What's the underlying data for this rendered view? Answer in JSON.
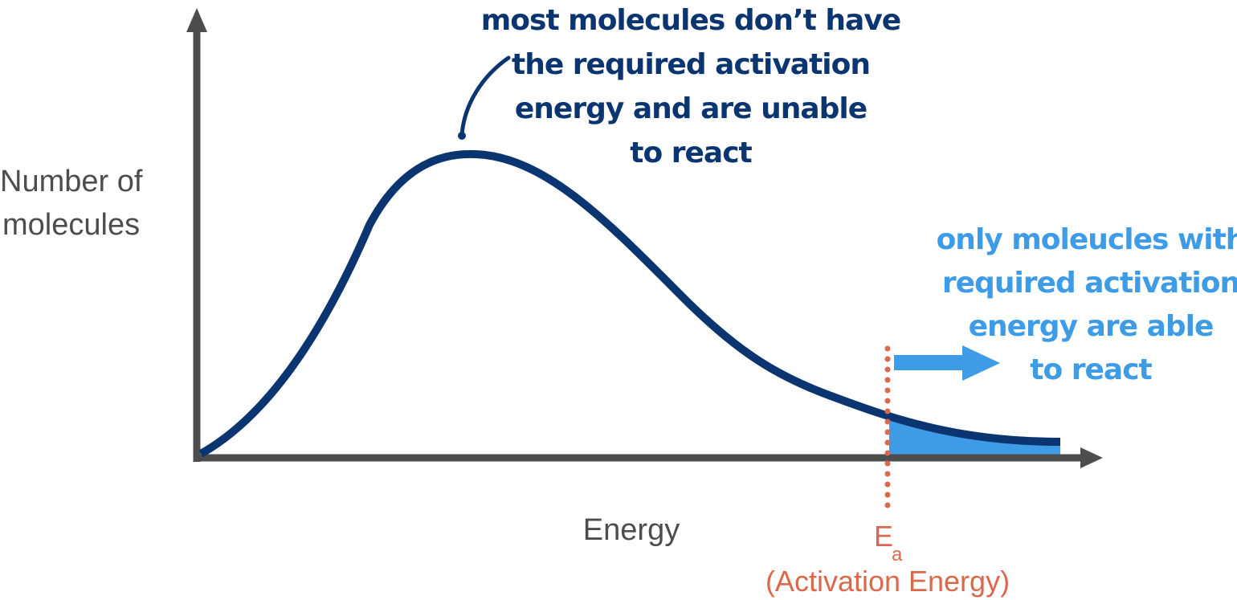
{
  "colors": {
    "axis": "#4d4d4d",
    "curve": "#0b3570",
    "highlight": "#3e9be6",
    "activation": "#d9694a"
  },
  "axes": {
    "y_label_line1": "Number of",
    "y_label_line2": "molecules",
    "x_label": "Energy"
  },
  "activation_marker": {
    "symbol": "E",
    "subscript": "a",
    "caption": "(Activation Energy)"
  },
  "annotations": {
    "peak_note": [
      "most molecules don’t have",
      "the required activation",
      "energy and are unable",
      "to react"
    ],
    "tail_note": [
      "only moleucles with",
      "required activation",
      "energy are able",
      "to react"
    ]
  }
}
